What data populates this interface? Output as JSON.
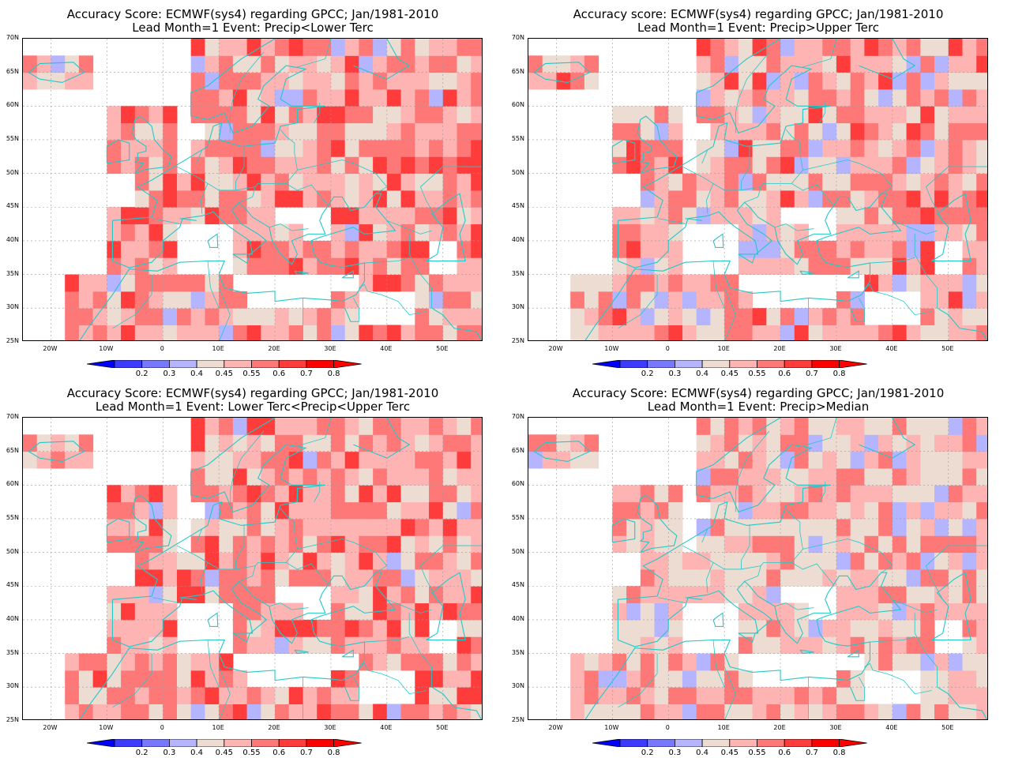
{
  "panels": [
    {
      "title1": "Accuracy Score: ECMWF(sys4) regarding GPCC; Jan/1981-2010",
      "title2": "Lead Month=1 Event: Precip<Lower Terc"
    },
    {
      "title1": "Accuracy score: ECMWF(sys4) regarding GPCC; Jan/1981-2010",
      "title2": "Lead Month=1 Event: Precip>Upper Terc"
    },
    {
      "title1": "Accuracy Score: ECMWF(sys4) regarding GPCC; Jan/1981-2010",
      "title2": "Lead Month=1 Event: Lower Terc<Precip<Upper Terc"
    },
    {
      "title1": "Accuracy Score: ECMWF(sys4) regarding GPCC; Jan/1981-2010",
      "title2": "Lead Month=1 Event: Precip>Median"
    }
  ],
  "lat_labels": [
    "70N",
    "65N",
    "60N",
    "55N",
    "50N",
    "45N",
    "40N",
    "35N",
    "30N",
    "25N"
  ],
  "lon_labels": [
    "20W",
    "10W",
    "0",
    "10E",
    "20E",
    "30E",
    "40E",
    "50E"
  ],
  "colorbar": {
    "labels": [
      "0.2",
      "0.3",
      "0.4",
      "0.45",
      "0.55",
      "0.6",
      "0.7",
      "0.8"
    ],
    "colors": [
      "#0000ff",
      "#3c3cff",
      "#7878ff",
      "#b4b4ff",
      "#ecdcd2",
      "#ffb4b4",
      "#ff7878",
      "#ff3c3c",
      "#ff0000"
    ]
  },
  "coastline_color": "#23c8c8"
}
